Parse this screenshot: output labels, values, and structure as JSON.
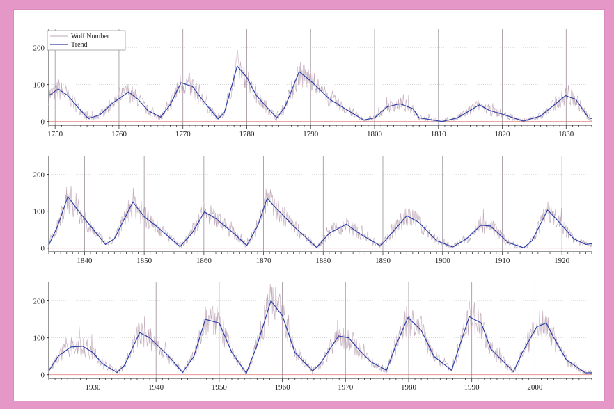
{
  "page": {
    "background": "#e597c8",
    "panel_background": "#ffffff"
  },
  "colors": {
    "wolf": "#c0a8b8",
    "trend": "#2a3fa8",
    "grid": "#cfcfcf",
    "vgrid": "#9b8f9b",
    "baseline": "#e08a80",
    "axis": "#333333"
  },
  "legend": {
    "items": [
      {
        "label": "Wolf Number",
        "color": "#c0a8b8"
      },
      {
        "label": "Trend",
        "color": "#2a3fa8"
      }
    ],
    "placement": "top-left"
  },
  "chart_data": [
    {
      "type": "line",
      "xlim": [
        1749,
        1834
      ],
      "ylim": [
        -10,
        250
      ],
      "x_ticks": [
        1750,
        1760,
        1770,
        1780,
        1790,
        1800,
        1810,
        1820,
        1830
      ],
      "y_ticks": [
        0,
        100,
        200
      ],
      "grid": true,
      "series": [
        {
          "name": "Trend",
          "points": [
            [
              1749,
              70
            ],
            [
              1750.5,
              88
            ],
            [
              1752,
              70
            ],
            [
              1753.5,
              40
            ],
            [
              1755.2,
              8
            ],
            [
              1757,
              18
            ],
            [
              1759,
              50
            ],
            [
              1761.5,
              80
            ],
            [
              1763,
              60
            ],
            [
              1764.5,
              30
            ],
            [
              1766.5,
              12
            ],
            [
              1768,
              45
            ],
            [
              1769.7,
              105
            ],
            [
              1771.5,
              95
            ],
            [
              1773,
              60
            ],
            [
              1775.5,
              7
            ],
            [
              1776.5,
              25
            ],
            [
              1778.5,
              150
            ],
            [
              1780,
              120
            ],
            [
              1781.5,
              70
            ],
            [
              1784.7,
              10
            ],
            [
              1786,
              40
            ],
            [
              1788.2,
              135
            ],
            [
              1790,
              110
            ],
            [
              1793,
              60
            ],
            [
              1798.3,
              4
            ],
            [
              1800,
              10
            ],
            [
              1802,
              40
            ],
            [
              1804,
              48
            ],
            [
              1806,
              35
            ],
            [
              1807,
              10
            ],
            [
              1810.6,
              0
            ],
            [
              1813,
              10
            ],
            [
              1816.4,
              45
            ],
            [
              1818,
              30
            ],
            [
              1820,
              20
            ],
            [
              1823.3,
              1
            ],
            [
              1826,
              15
            ],
            [
              1829.9,
              70
            ],
            [
              1831.5,
              60
            ],
            [
              1833.5,
              10
            ],
            [
              1834,
              8
            ]
          ]
        },
        {
          "name": "Wolf Number",
          "points": []
        }
      ]
    },
    {
      "type": "line",
      "xlim": [
        1834,
        1925
      ],
      "ylim": [
        -10,
        250
      ],
      "x_ticks": [
        1840,
        1850,
        1860,
        1870,
        1880,
        1890,
        1900,
        1910,
        1920
      ],
      "y_ticks": [
        0,
        100,
        200
      ],
      "grid": true,
      "series": [
        {
          "name": "Trend",
          "points": [
            [
              1834,
              8
            ],
            [
              1835.5,
              60
            ],
            [
              1837.2,
              140
            ],
            [
              1839,
              100
            ],
            [
              1841,
              60
            ],
            [
              1843.5,
              10
            ],
            [
              1845,
              25
            ],
            [
              1848.1,
              125
            ],
            [
              1850,
              85
            ],
            [
              1852,
              60
            ],
            [
              1856,
              4
            ],
            [
              1858,
              40
            ],
            [
              1860.1,
              98
            ],
            [
              1862,
              80
            ],
            [
              1865,
              40
            ],
            [
              1867.2,
              7
            ],
            [
              1869,
              60
            ],
            [
              1870.6,
              135
            ],
            [
              1872,
              110
            ],
            [
              1875,
              60
            ],
            [
              1878.9,
              2
            ],
            [
              1881,
              40
            ],
            [
              1883.9,
              65
            ],
            [
              1886,
              40
            ],
            [
              1889.6,
              6
            ],
            [
              1892,
              50
            ],
            [
              1894,
              88
            ],
            [
              1896,
              70
            ],
            [
              1899,
              20
            ],
            [
              1901.7,
              3
            ],
            [
              1904,
              25
            ],
            [
              1906.4,
              62
            ],
            [
              1908,
              60
            ],
            [
              1911,
              15
            ],
            [
              1913.6,
              1
            ],
            [
              1915,
              20
            ],
            [
              1917.6,
              103
            ],
            [
              1919,
              80
            ],
            [
              1922,
              25
            ],
            [
              1924,
              10
            ],
            [
              1925,
              12
            ]
          ]
        },
        {
          "name": "Wolf Number",
          "points": []
        }
      ]
    },
    {
      "type": "line",
      "xlim": [
        1923,
        2009
      ],
      "ylim": [
        -10,
        250
      ],
      "x_ticks": [
        1930,
        1940,
        1950,
        1960,
        1970,
        1980,
        1990,
        2000
      ],
      "y_ticks": [
        0,
        100,
        200
      ],
      "grid": true,
      "series": [
        {
          "name": "Trend",
          "points": [
            [
              1923,
              10
            ],
            [
              1924.5,
              50
            ],
            [
              1926.5,
              75
            ],
            [
              1928.4,
              77
            ],
            [
              1930,
              60
            ],
            [
              1931.5,
              30
            ],
            [
              1933.8,
              6
            ],
            [
              1935,
              25
            ],
            [
              1937.4,
              114
            ],
            [
              1939,
              100
            ],
            [
              1942,
              50
            ],
            [
              1944.2,
              6
            ],
            [
              1946,
              50
            ],
            [
              1947.8,
              150
            ],
            [
              1950,
              140
            ],
            [
              1952,
              60
            ],
            [
              1954.3,
              4
            ],
            [
              1956,
              80
            ],
            [
              1958.2,
              200
            ],
            [
              1960,
              160
            ],
            [
              1962,
              60
            ],
            [
              1964.8,
              10
            ],
            [
              1966,
              30
            ],
            [
              1968.9,
              105
            ],
            [
              1970.5,
              100
            ],
            [
              1972,
              70
            ],
            [
              1974,
              35
            ],
            [
              1976.5,
              12
            ],
            [
              1978,
              80
            ],
            [
              1979.9,
              155
            ],
            [
              1982,
              120
            ],
            [
              1984,
              50
            ],
            [
              1986.8,
              12
            ],
            [
              1988.5,
              100
            ],
            [
              1989.6,
              157
            ],
            [
              1991.5,
              140
            ],
            [
              1993,
              70
            ],
            [
              1996.6,
              8
            ],
            [
              1998,
              60
            ],
            [
              2000.3,
              130
            ],
            [
              2001.8,
              140
            ],
            [
              2003,
              100
            ],
            [
              2005,
              40
            ],
            [
              2008,
              5
            ],
            [
              2009,
              5
            ]
          ]
        },
        {
          "name": "Wolf Number",
          "points": []
        }
      ]
    }
  ]
}
